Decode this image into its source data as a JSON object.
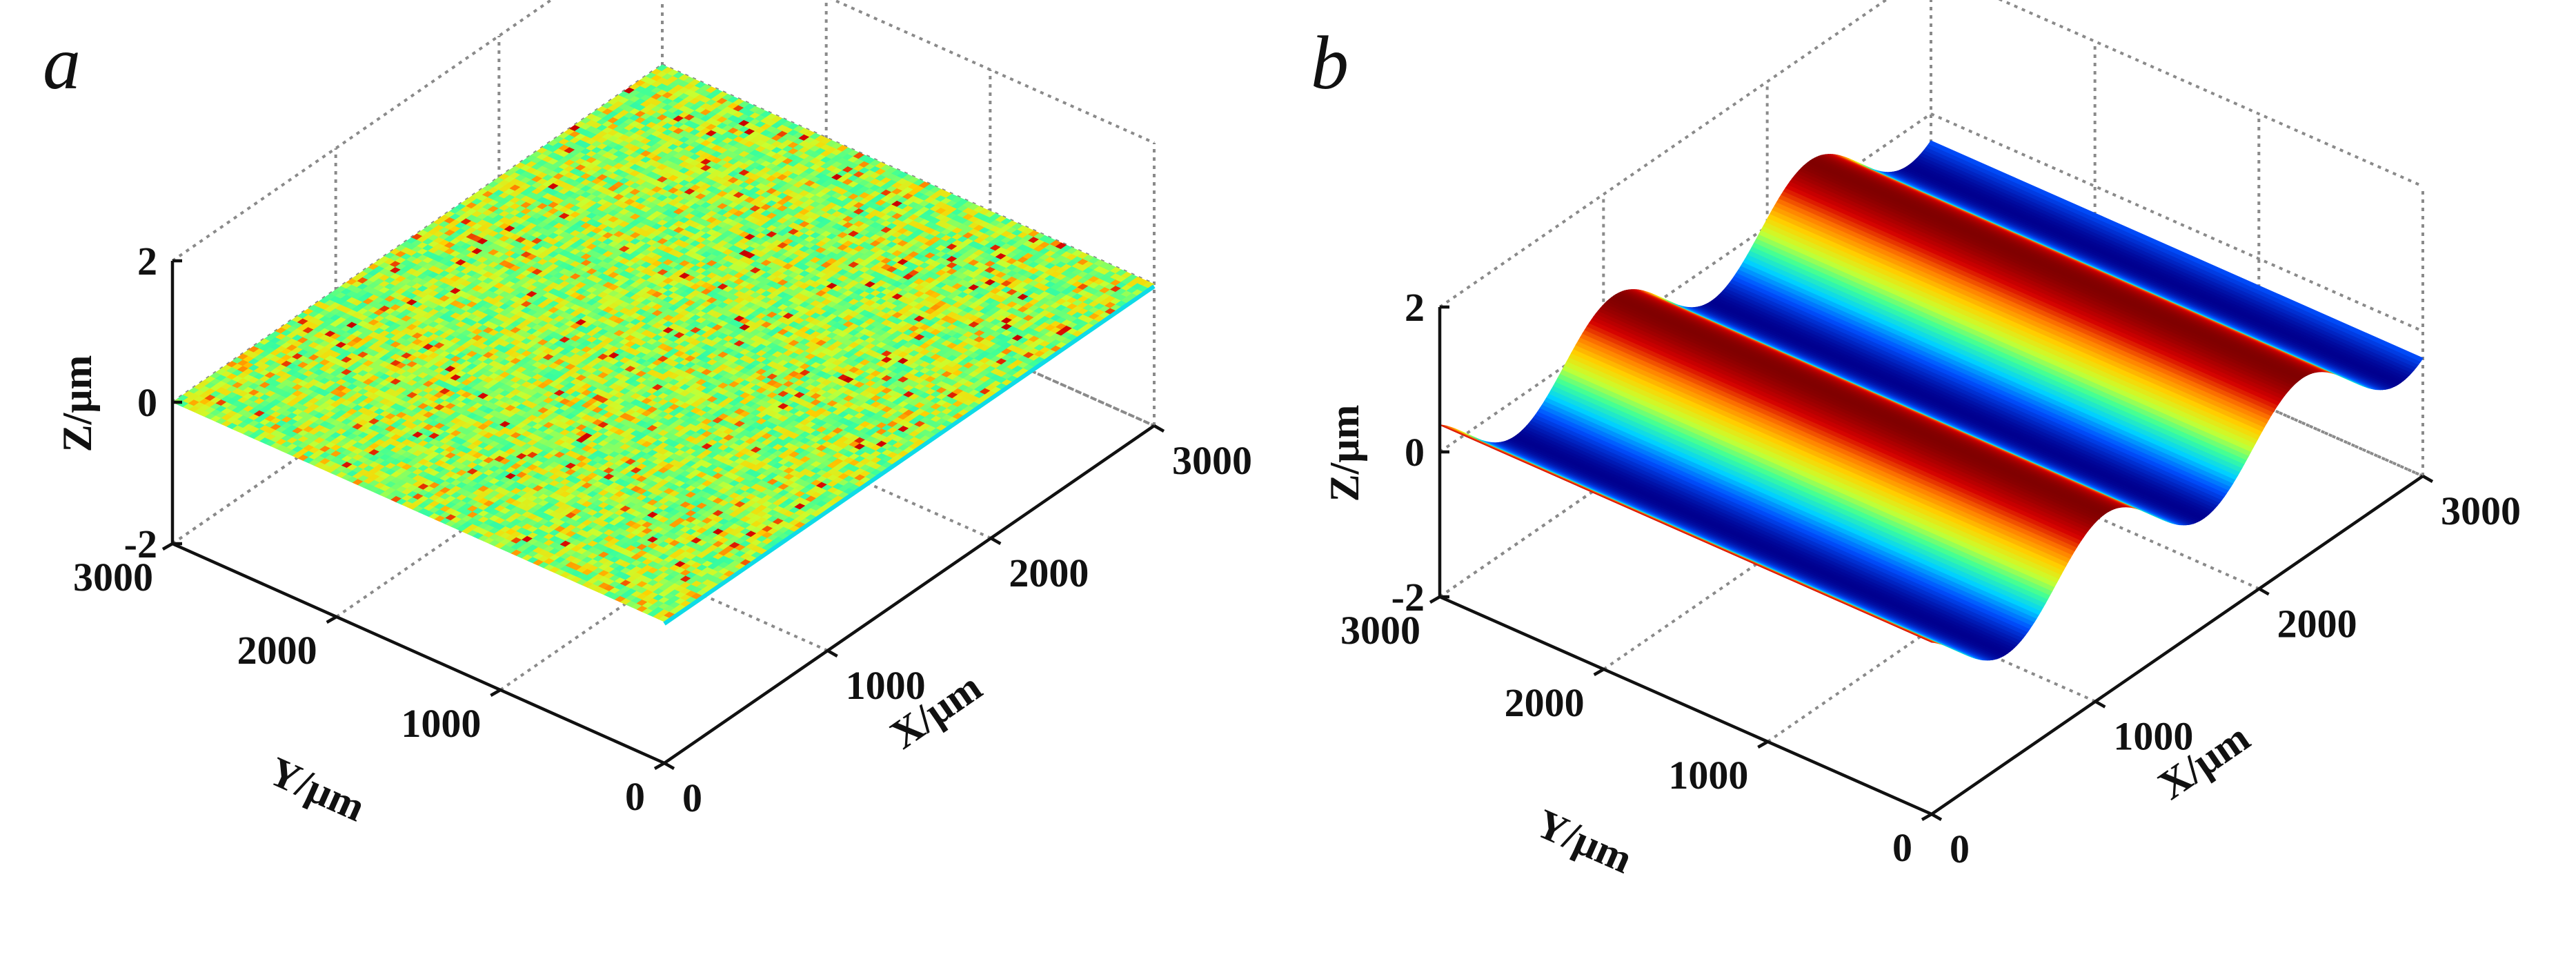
{
  "colors": {
    "colormap": [
      "#00008f",
      "#0050ff",
      "#00cfff",
      "#3cff9a",
      "#c8ff30",
      "#ffd200",
      "#ff7a00",
      "#d40000",
      "#800000"
    ]
  },
  "chart_data": [
    {
      "type": "surface",
      "panel_label": "a",
      "xlabel": "X/μm",
      "ylabel": "Y/μm",
      "zlabel": "Z/μm",
      "xlim": [
        0,
        3000
      ],
      "ylim": [
        0,
        3000
      ],
      "zlim": [
        -2,
        2
      ],
      "xticks": [
        0,
        1000,
        2000,
        3000
      ],
      "yticks": [
        0,
        1000,
        2000,
        3000
      ],
      "zticks": [
        -2,
        0,
        2
      ],
      "xtick_labels": [
        "0",
        "1000",
        "2000",
        "3000"
      ],
      "ytick_labels": [
        "0",
        "1000",
        "2000",
        "3000"
      ],
      "ztick_labels": [
        "-2",
        "0",
        "2"
      ],
      "surface": "nearly flat rough surface around Z = 0 (noise amplitude about 0.1 μm)",
      "grid": true
    },
    {
      "type": "surface",
      "panel_label": "b",
      "xlabel": "X/μm",
      "ylabel": "Y/μm",
      "zlabel": "Z/μm",
      "xlim": [
        0,
        3000
      ],
      "ylim": [
        0,
        3000
      ],
      "zlim": [
        -2,
        2
      ],
      "xticks": [
        0,
        1000,
        2000,
        3000
      ],
      "yticks": [
        0,
        1000,
        2000,
        3000
      ],
      "zticks": [
        -2,
        0,
        2
      ],
      "xtick_labels": [
        "0",
        "1000",
        "2000",
        "3000"
      ],
      "ytick_labels": [
        "0",
        "1000",
        "2000",
        "3000"
      ],
      "ztick_labels": [
        "-2",
        "0",
        "2"
      ],
      "surface": "sinusoidal waviness along X, constant along Y",
      "amplitude": 0.5,
      "wavelength": 1200,
      "grid": true
    }
  ]
}
